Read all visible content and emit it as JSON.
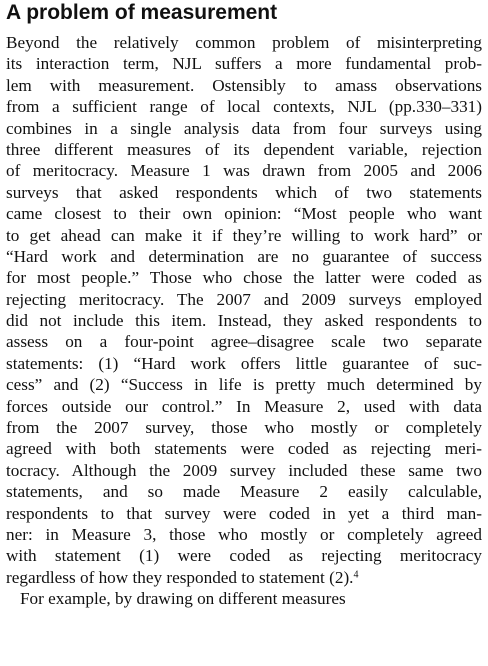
{
  "heading": "A problem of measurement",
  "lines": [
    "Beyond the relatively common problem of misinterpreting",
    "its interaction term, NJL suffers a more fundamental prob-",
    "lem with measurement. Ostensibly to amass observations",
    "from a sufficient range of local contexts, NJL (pp.330–331)",
    "combines in a single analysis data from four surveys using",
    "three different measures of its dependent variable, rejection",
    "of meritocracy. Measure 1 was drawn from 2005 and 2006",
    "surveys that asked respondents which of two statements",
    "came closest to their own opinion: “Most people who want",
    "to get ahead can make it if they’re willing to work hard” or",
    "“Hard work and determination are no guarantee of success",
    "for most people.” Those who chose the latter were coded as",
    "rejecting meritocracy. The 2007 and 2009 surveys employed",
    "did not include this item. Instead, they asked respondents to",
    "assess on a four-point agree–disagree scale two separate",
    "statements: (1) “Hard work offers little guarantee of suc-",
    "cess” and (2) “Success in life is pretty much determined by",
    "forces outside our control.” In Measure 2, used with data",
    "from the 2007 survey, those who mostly or completely",
    "agreed with both statements were coded as rejecting meri-",
    "tocracy. Although the 2009 survey included these same two",
    "statements, and so made Measure 2 easily calculable,",
    "respondents to that survey were coded in yet a third man-",
    "ner: in Measure 3, those who mostly or completely agreed",
    "with statement (1) were coded as rejecting meritocracy",
    "regardless of how they responded to statement (2)."
  ],
  "footnote_marker": "4",
  "cut_line": "For example, by drawing on different measures"
}
